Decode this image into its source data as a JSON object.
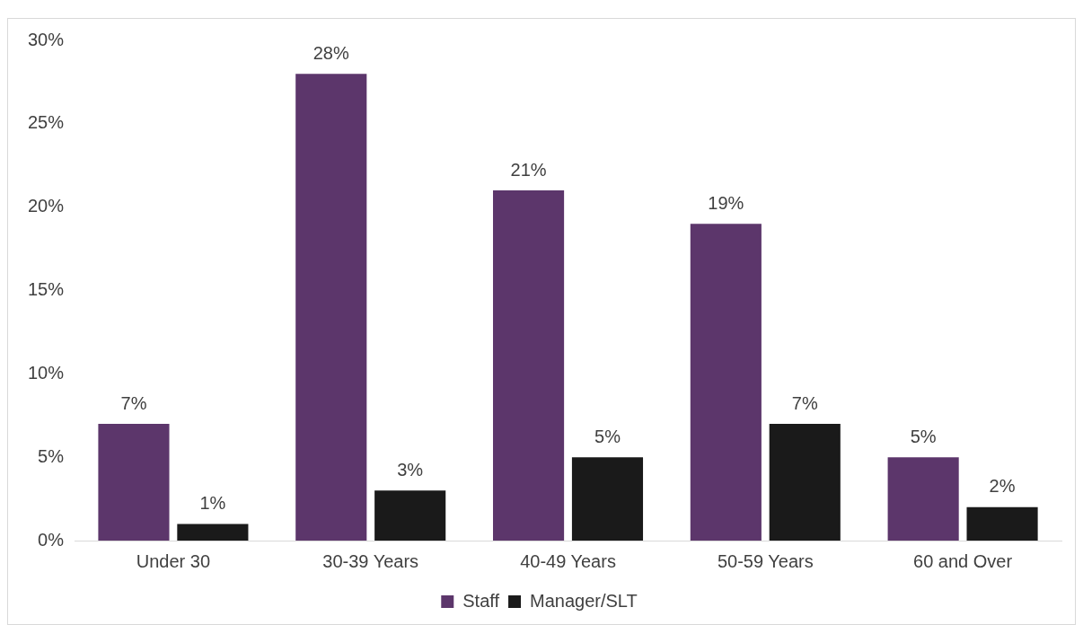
{
  "chart_data": {
    "type": "bar",
    "categories": [
      "Under 30",
      "30-39 Years",
      "40-49 Years",
      "50-59 Years",
      "60 and Over"
    ],
    "series": [
      {
        "name": "Staff",
        "color": "#5c366b",
        "values": [
          7,
          28,
          21,
          19,
          5
        ],
        "value_labels": [
          "7%",
          "28%",
          "21%",
          "19%",
          "5%"
        ]
      },
      {
        "name": "Manager/SLT",
        "color": "#1a1a1a",
        "values": [
          1,
          3,
          5,
          7,
          2
        ],
        "value_labels": [
          "1%",
          "3%",
          "5%",
          "7%",
          "2%"
        ]
      }
    ],
    "ylim": [
      0,
      30
    ],
    "yticks": [
      {
        "value": 0,
        "label": "0%"
      },
      {
        "value": 5,
        "label": "5%"
      },
      {
        "value": 10,
        "label": "10%"
      },
      {
        "value": 15,
        "label": "15%"
      },
      {
        "value": 20,
        "label": "20%"
      },
      {
        "value": 25,
        "label": "25%"
      },
      {
        "value": 30,
        "label": "30%"
      }
    ],
    "grid": false,
    "legend": "bottom"
  }
}
